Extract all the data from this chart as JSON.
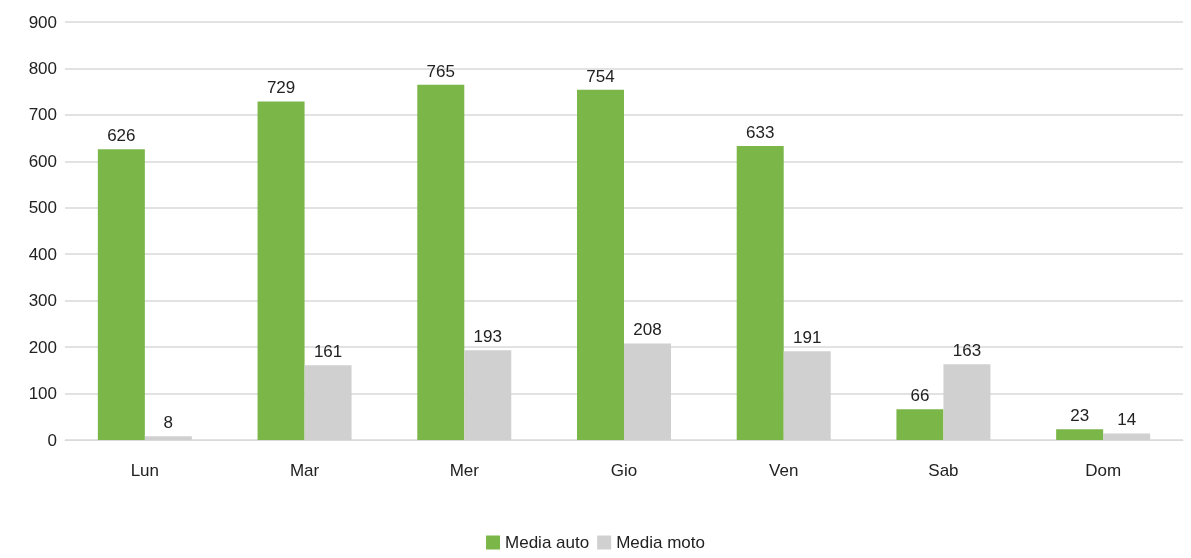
{
  "chart_data": {
    "type": "bar",
    "categories": [
      "Lun",
      "Mar",
      "Mer",
      "Gio",
      "Ven",
      "Sab",
      "Dom"
    ],
    "series": [
      {
        "name": "Media auto",
        "color": "#7ab648",
        "values": [
          626,
          729,
          765,
          754,
          633,
          66,
          23
        ]
      },
      {
        "name": "Media moto",
        "color": "#d0d0d0",
        "values": [
          8,
          161,
          193,
          208,
          191,
          163,
          14
        ]
      }
    ],
    "ylim": [
      0,
      900
    ],
    "yticks": [
      0,
      100,
      200,
      300,
      400,
      500,
      600,
      700,
      800,
      900
    ],
    "grid": "y",
    "legend": "bottom",
    "data_labels": true
  }
}
